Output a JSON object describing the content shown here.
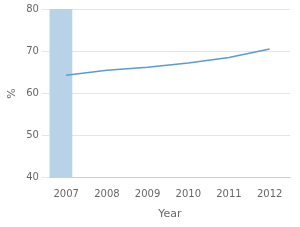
{
  "chart_data": {
    "type": "line",
    "x": [
      2007,
      2008,
      2009,
      2010,
      2011,
      2012
    ],
    "values": [
      64.3,
      65.5,
      66.2,
      67.2,
      68.5,
      70.5
    ],
    "color": "#5b9bd5",
    "marker": "none",
    "xlabel": "Year",
    "ylabel": "%",
    "xlim": [
      2006.6,
      2012.5
    ],
    "xticks": [
      2007,
      2008,
      2009,
      2010,
      2011,
      2012
    ],
    "ylim": [
      40,
      80
    ],
    "yticks": [
      40,
      50,
      60,
      70,
      80
    ],
    "grid": "y",
    "spans": [
      {
        "start": 2006.6,
        "end": 2007.15,
        "color": "#b8d3e8"
      }
    ]
  }
}
